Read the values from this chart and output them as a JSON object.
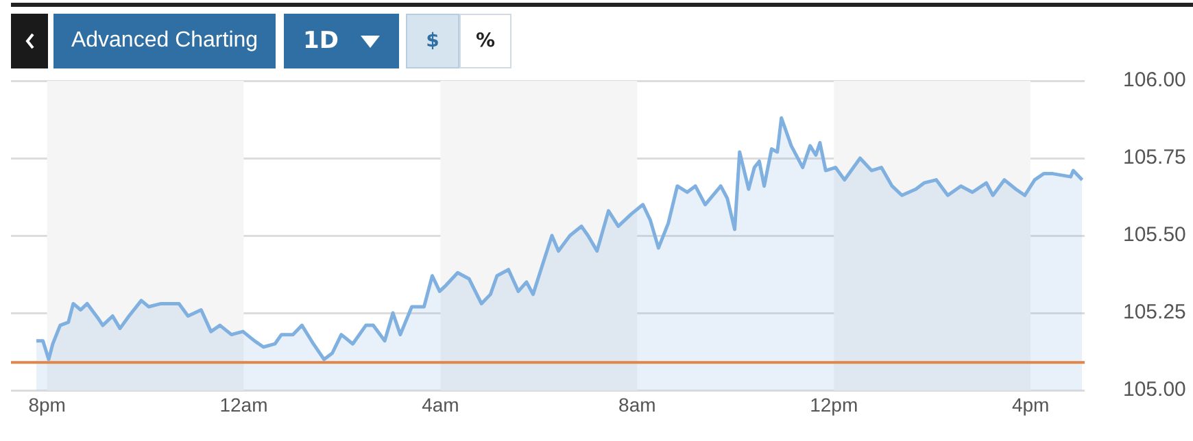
{
  "chart_data": {
    "type": "area",
    "annotations": [
      "Advanced Charting",
      "1D",
      "$",
      "%"
    ],
    "x": [
      "--01-01T19:47",
      "--01-01T19:55",
      "--01-01T20:02",
      "--01-01T20:07",
      "--01-01T20:16",
      "--01-01T20:26",
      "--01-01T20:32",
      "--01-01T20:41",
      "--01-01T20:49",
      "--01-01T21:03",
      "--01-01T21:08",
      "--01-01T21:20",
      "--01-01T21:29",
      "--01-01T21:40",
      "--01-01T21:55",
      "--01-01T22:04",
      "--01-01T22:19",
      "--01-01T22:41",
      "--01-01T22:52",
      "--01-01T23:08",
      "--01-01T23:20",
      "--01-01T23:31",
      "--01-01T23:45",
      "--01-01T23:59",
      "--01-02T00:13",
      "--01-02T00:24",
      "--01-02T00:38",
      "--01-02T00:46",
      "--01-02T01:00",
      "--01-02T01:11",
      "--01-02T01:25",
      "--01-02T01:38",
      "--01-02T01:48",
      "--01-02T01:59",
      "--01-02T02:13",
      "--01-02T02:29",
      "--01-02T02:38",
      "--01-02T02:52",
      "--01-02T03:02",
      "--01-02T03:11",
      "--01-02T03:25",
      "--01-02T03:40",
      "--01-02T03:50",
      "--01-02T03:59",
      "--01-02T04:07",
      "--01-02T04:21",
      "--01-02T04:35",
      "--01-02T04:50",
      "--01-02T05:01",
      "--01-02T05:09",
      "--01-02T05:23",
      "--01-02T05:35",
      "--01-02T05:45",
      "--01-02T05:53",
      "--01-02T06:05",
      "--01-02T06:16",
      "--01-02T06:24",
      "--01-02T06:38",
      "--01-02T06:52",
      "--01-02T07:00",
      "--01-02T07:11",
      "--01-02T07:25",
      "--01-02T07:37",
      "--01-02T07:53",
      "--01-02T08:07",
      "--01-02T08:16",
      "--01-02T08:26",
      "--01-02T08:38",
      "--01-02T08:49",
      "--01-02T09:01",
      "--01-02T09:11",
      "--01-02T09:23",
      "--01-02T09:42",
      "--01-02T09:50",
      "--01-02T09:59",
      "--01-02T10:05",
      "--01-02T10:16",
      "--01-02T10:23",
      "--01-02T10:29",
      "--01-02T10:35",
      "--01-02T10:44",
      "--01-02T10:51",
      "--01-02T10:56",
      "--01-02T11:08",
      "--01-02T11:22",
      "--01-02T11:31",
      "--01-02T11:38",
      "--01-02T11:43",
      "--01-02T11:50",
      "--01-02T12:02",
      "--01-02T12:13",
      "--01-02T12:32",
      "--01-02T12:46",
      "--01-02T12:58",
      "--01-02T13:11",
      "--01-02T13:23",
      "--01-02T13:40",
      "--01-02T13:50",
      "--01-02T14:05",
      "--01-02T14:19",
      "--01-02T14:35",
      "--01-02T14:49",
      "--01-02T15:06",
      "--01-02T15:14",
      "--01-02T15:28",
      "--01-02T15:42",
      "--01-02T15:53",
      "--01-02T16:05",
      "--01-02T16:16",
      "--01-02T16:27",
      "--01-02T16:49",
      "--01-02T16:52",
      "--01-02T17:03"
    ],
    "series": [
      {
        "color": "#7fb0e0",
        "values": [
          105.16,
          105.16,
          105.1,
          105.15,
          105.21,
          105.22,
          105.28,
          105.26,
          105.28,
          105.23,
          105.21,
          105.24,
          105.2,
          105.24,
          105.29,
          105.27,
          105.28,
          105.28,
          105.24,
          105.26,
          105.19,
          105.21,
          105.18,
          105.19,
          105.16,
          105.14,
          105.15,
          105.18,
          105.18,
          105.21,
          105.15,
          105.1,
          105.12,
          105.18,
          105.15,
          105.21,
          105.21,
          105.16,
          105.25,
          105.18,
          105.27,
          105.27,
          105.37,
          105.32,
          105.34,
          105.38,
          105.36,
          105.28,
          105.31,
          105.37,
          105.39,
          105.32,
          105.35,
          105.31,
          105.41,
          105.5,
          105.45,
          105.5,
          105.53,
          105.5,
          105.45,
          105.58,
          105.53,
          105.57,
          105.6,
          105.55,
          105.46,
          105.54,
          105.66,
          105.64,
          105.66,
          105.6,
          105.66,
          105.62,
          105.52,
          105.77,
          105.65,
          105.72,
          105.74,
          105.66,
          105.78,
          105.77,
          105.88,
          105.79,
          105.72,
          105.79,
          105.76,
          105.8,
          105.71,
          105.72,
          105.68,
          105.75,
          105.71,
          105.72,
          105.66,
          105.63,
          105.65,
          105.67,
          105.68,
          105.63,
          105.66,
          105.64,
          105.67,
          105.63,
          105.68,
          105.65,
          105.63,
          105.68,
          105.7,
          105.7,
          105.69,
          105.71,
          105.68
        ]
      }
    ],
    "xlim": [
      "--01-01T19:16",
      "--01-02T17:06"
    ],
    "xticks": [
      {
        "value": "--01-01T20:00",
        "label": "8pm"
      },
      {
        "value": "--01-02T00:00",
        "label": "12am"
      },
      {
        "value": "--01-02T04:00",
        "label": "4am"
      },
      {
        "value": "--01-02T08:00",
        "label": "8am"
      },
      {
        "value": "--01-02T12:00",
        "label": "12pm"
      },
      {
        "value": "--01-02T16:00",
        "label": "4pm"
      }
    ],
    "ylim": [
      105,
      106
    ],
    "yticks": [
      {
        "value": 105,
        "label": "105.00"
      },
      105.25,
      {
        "value": 105.5,
        "label": "105.50"
      },
      105.75,
      {
        "value": 106,
        "label": "106.00"
      }
    ],
    "grid": "y",
    "ref_lines": [
      {
        "axis": "y",
        "value": 105.09,
        "color": "#e0864a"
      }
    ],
    "bands": [
      {
        "axis": "x",
        "from": "--01-01T20:00",
        "to": "--01-02T00:00",
        "color": "#f5f5f5"
      },
      {
        "axis": "x",
        "from": "--01-02T04:00",
        "to": "--01-02T08:00",
        "color": "#f5f5f5"
      },
      {
        "axis": "x",
        "from": "--01-02T12:00",
        "to": "--01-02T16:00",
        "color": "#f5f5f5"
      }
    ]
  }
}
